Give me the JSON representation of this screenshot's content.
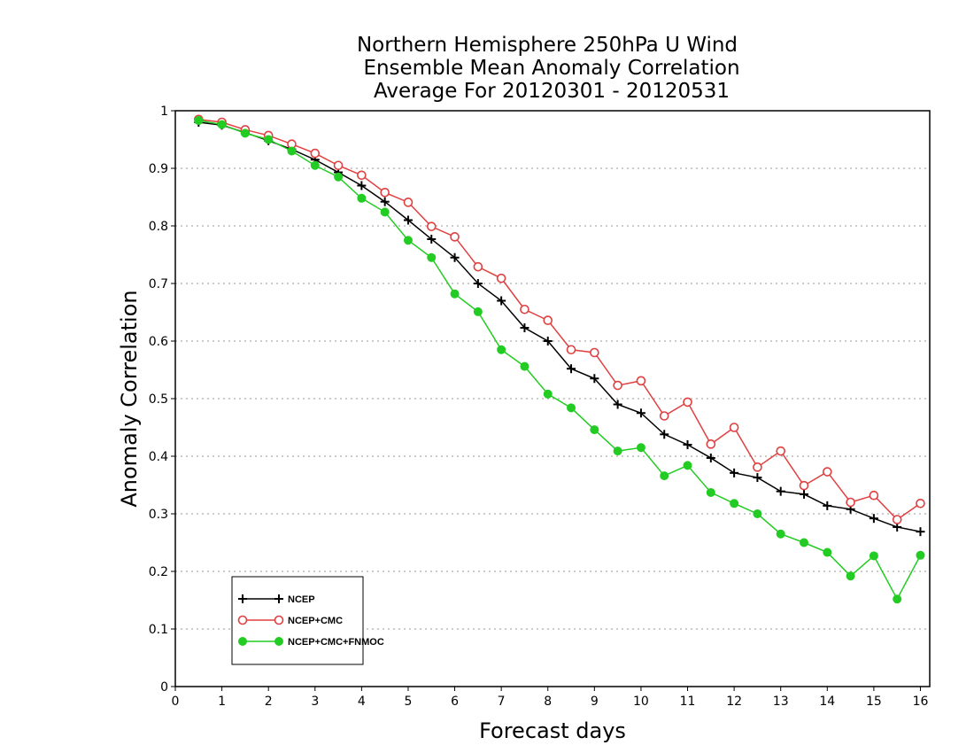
{
  "chart_data": {
    "type": "line",
    "title": [
      "Northern Hemisphere 250hPa U Wind",
      "Ensemble Mean Anomaly Correlation",
      "Average For 20120301 - 20120531"
    ],
    "xlabel": "Forecast days",
    "ylabel": "Anomaly Correlation",
    "xlim": [
      0,
      16.2
    ],
    "ylim": [
      0,
      1
    ],
    "xticks": [
      "0",
      "1",
      "2",
      "3",
      "4",
      "5",
      "6",
      "7",
      "8",
      "9",
      "10",
      "11",
      "12",
      "13",
      "14",
      "15",
      "16"
    ],
    "yticks": [
      "0",
      "0.1",
      "0.2",
      "0.3",
      "0.4",
      "0.5",
      "0.6",
      "0.7",
      "0.8",
      "0.9",
      "1"
    ],
    "grid": true,
    "legend_position": "bottom-left",
    "x": [
      0.5,
      1,
      1.5,
      2,
      2.5,
      3,
      3.5,
      4,
      4.5,
      5,
      5.5,
      6,
      6.5,
      7,
      7.5,
      8,
      8.5,
      9,
      9.5,
      10,
      10.5,
      11,
      11.5,
      12,
      12.5,
      13,
      13.5,
      14,
      14.5,
      15,
      15.5,
      16
    ],
    "series": [
      {
        "name": "NCEP",
        "color": "#000000",
        "marker": "plus",
        "values": [
          0.98,
          0.975,
          0.962,
          0.948,
          0.933,
          0.915,
          0.893,
          0.87,
          0.842,
          0.81,
          0.777,
          0.745,
          0.7,
          0.67,
          0.623,
          0.6,
          0.552,
          0.535,
          0.49,
          0.475,
          0.438,
          0.42,
          0.397,
          0.371,
          0.363,
          0.339,
          0.334,
          0.314,
          0.308,
          0.292,
          0.277,
          0.269
        ]
      },
      {
        "name": "NCEP+CMC",
        "color": "#e04040",
        "marker": "open-circle",
        "values": [
          0.985,
          0.98,
          0.967,
          0.957,
          0.942,
          0.926,
          0.905,
          0.888,
          0.858,
          0.841,
          0.799,
          0.781,
          0.729,
          0.709,
          0.655,
          0.636,
          0.585,
          0.58,
          0.523,
          0.531,
          0.47,
          0.494,
          0.421,
          0.45,
          0.381,
          0.409,
          0.349,
          0.373,
          0.32,
          0.332,
          0.29,
          0.318
        ]
      },
      {
        "name": "NCEP+CMC+FNMOC",
        "color": "#22cc22",
        "marker": "filled-circle",
        "values": [
          0.983,
          0.976,
          0.961,
          0.95,
          0.93,
          0.905,
          0.885,
          0.848,
          0.824,
          0.775,
          0.745,
          0.682,
          0.651,
          0.585,
          0.556,
          0.508,
          0.484,
          0.446,
          0.409,
          0.415,
          0.366,
          0.384,
          0.337,
          0.318,
          0.3,
          0.265,
          0.25,
          0.233,
          0.192,
          0.227,
          0.152,
          0.228
        ]
      }
    ]
  }
}
